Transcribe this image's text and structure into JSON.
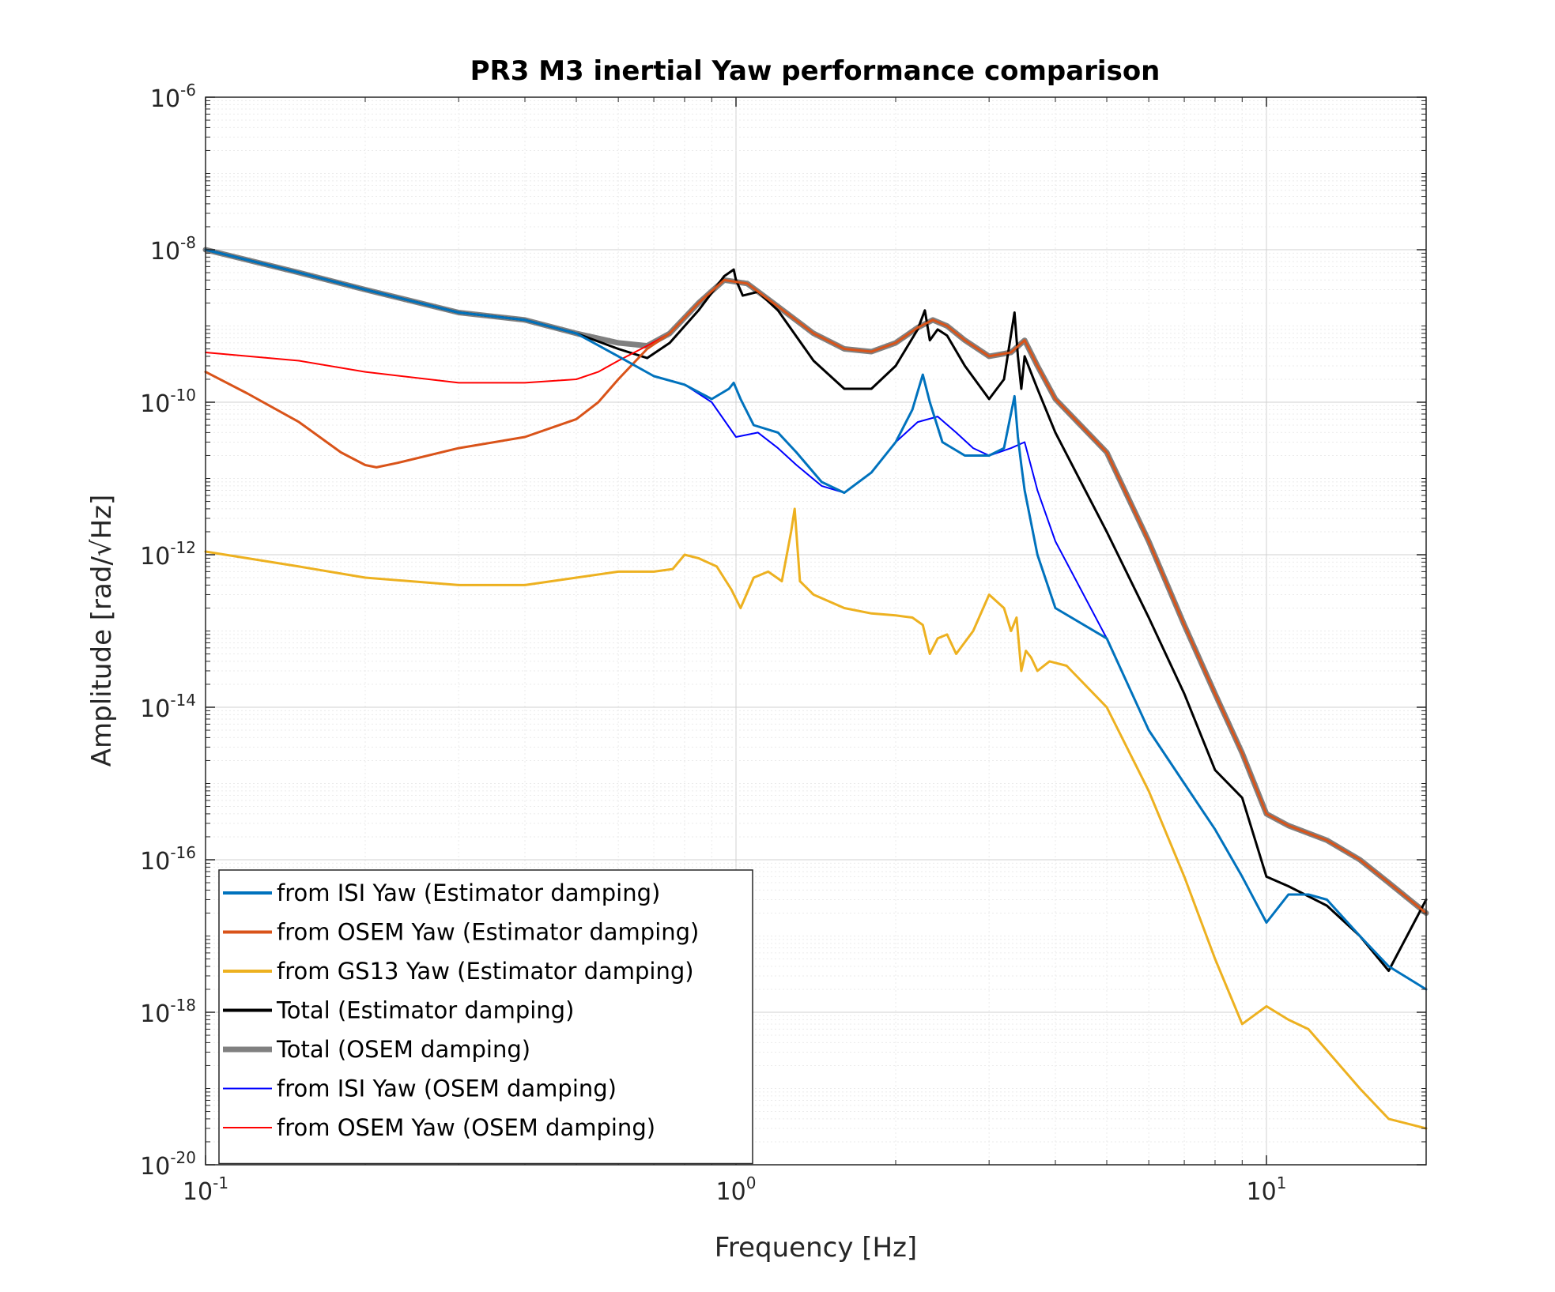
{
  "chart_data": {
    "type": "line",
    "title": "PR3 M3 inertial Yaw performance comparison",
    "xlabel": "Frequency [Hz]",
    "ylabel": "Amplitude [rad/√Hz]",
    "xscale": "log",
    "yscale": "log",
    "xlim": [
      0.1,
      20
    ],
    "ylim": [
      1e-20,
      1e-06
    ],
    "grid": true,
    "minor_grid": true,
    "legend_location": "bottom-left",
    "x_ticks": [
      {
        "value": 0.1,
        "base": "10",
        "exp": "-1"
      },
      {
        "value": 1,
        "base": "10",
        "exp": "0"
      },
      {
        "value": 10,
        "base": "10",
        "exp": "1"
      }
    ],
    "y_ticks": [
      {
        "value": 1e-06,
        "base": "10",
        "exp": "-6"
      },
      {
        "value": 1e-08,
        "base": "10",
        "exp": "-8"
      },
      {
        "value": 1e-10,
        "base": "10",
        "exp": "-10"
      },
      {
        "value": 1e-12,
        "base": "10",
        "exp": "-12"
      },
      {
        "value": 1e-14,
        "base": "10",
        "exp": "-14"
      },
      {
        "value": 1e-16,
        "base": "10",
        "exp": "-16"
      },
      {
        "value": 1e-18,
        "base": "10",
        "exp": "-18"
      },
      {
        "value": 1e-20,
        "base": "10",
        "exp": "-20"
      }
    ],
    "series": [
      {
        "name": "Total (OSEM damping)",
        "color": "#808080",
        "width": 7,
        "x": [
          0.1,
          0.15,
          0.2,
          0.3,
          0.4,
          0.5,
          0.6,
          0.68,
          0.75,
          0.85,
          0.95,
          1.05,
          1.2,
          1.4,
          1.6,
          1.8,
          2.0,
          2.2,
          2.35,
          2.5,
          2.7,
          3.0,
          3.3,
          3.5,
          3.7,
          4.0,
          5.0,
          6.0,
          7.0,
          8.0,
          9.0,
          10.0,
          11.0,
          13.0,
          15.0,
          17.0,
          20.0
        ],
        "y": [
          1e-08,
          5e-09,
          3e-09,
          1.5e-09,
          1.2e-09,
          8e-10,
          6e-10,
          5.5e-10,
          8e-10,
          2e-09,
          4e-09,
          3.6e-09,
          1.8e-09,
          8e-10,
          5e-10,
          4.6e-10,
          6e-10,
          9.5e-10,
          1.2e-09,
          1e-09,
          6.5e-10,
          4e-10,
          4.5e-10,
          6.5e-10,
          3e-10,
          1.1e-10,
          2.2e-11,
          1.5e-12,
          1.2e-13,
          1.5e-14,
          2.5e-15,
          4e-16,
          2.8e-16,
          1.8e-16,
          1e-16,
          5e-17,
          2e-17
        ]
      },
      {
        "name": "Total (Estimator damping)",
        "color": "#000000",
        "width": 3,
        "x": [
          0.1,
          0.15,
          0.2,
          0.3,
          0.4,
          0.5,
          0.6,
          0.68,
          0.75,
          0.85,
          0.95,
          0.99,
          1.0,
          1.03,
          1.1,
          1.2,
          1.4,
          1.6,
          1.8,
          2.0,
          2.2,
          2.27,
          2.32,
          2.4,
          2.5,
          2.7,
          3.0,
          3.2,
          3.35,
          3.4,
          3.45,
          3.5,
          3.7,
          4.0,
          5.0,
          6.0,
          7.0,
          8.0,
          9.0,
          10.0,
          11.0,
          13.0,
          15.0,
          17.0,
          20.0
        ],
        "y": [
          1e-08,
          5e-09,
          3e-09,
          1.5e-09,
          1.2e-09,
          8e-10,
          5e-10,
          3.8e-10,
          6e-10,
          1.6e-09,
          4.5e-09,
          5.5e-09,
          4e-09,
          2.5e-09,
          2.8e-09,
          1.6e-09,
          3.5e-10,
          1.5e-10,
          1.5e-10,
          3e-10,
          9e-10,
          1.6e-09,
          6.5e-10,
          9e-10,
          7.5e-10,
          3e-10,
          1.1e-10,
          2e-10,
          1.5e-09,
          4e-10,
          1.5e-10,
          4e-10,
          1.5e-10,
          4e-11,
          2e-12,
          1.5e-13,
          1.5e-14,
          1.5e-15,
          6.5e-16,
          6e-17,
          4.5e-17,
          2.5e-17,
          1e-17,
          3.5e-18,
          3e-17
        ]
      },
      {
        "name": "from OSEM Yaw (OSEM damping)",
        "color": "#ff0000",
        "width": 2,
        "x": [
          0.1,
          0.15,
          0.2,
          0.3,
          0.4,
          0.5,
          0.55,
          0.6,
          0.68,
          0.75,
          0.85,
          0.95,
          1.05,
          1.2,
          1.4,
          1.6,
          1.8,
          2.0,
          2.2,
          2.35,
          2.5,
          2.7,
          3.0,
          3.3,
          3.5,
          3.7,
          4.0,
          5.0,
          6.0,
          7.0,
          8.0,
          9.0,
          10.0,
          11.0,
          13.0,
          15.0,
          17.0,
          20.0
        ],
        "y": [
          4.5e-10,
          3.5e-10,
          2.5e-10,
          1.8e-10,
          1.8e-10,
          2e-10,
          2.5e-10,
          3.5e-10,
          5.5e-10,
          8e-10,
          2e-09,
          4e-09,
          3.6e-09,
          1.8e-09,
          8e-10,
          5e-10,
          4.6e-10,
          6e-10,
          9.5e-10,
          1.2e-09,
          1e-09,
          6.5e-10,
          4e-10,
          4.5e-10,
          6.5e-10,
          3e-10,
          1.1e-10,
          2.2e-11,
          1.5e-12,
          1.2e-13,
          1.5e-14,
          2.5e-15,
          4e-16,
          2.8e-16,
          1.8e-16,
          1e-16,
          5e-17,
          2e-17
        ]
      },
      {
        "name": "from OSEM Yaw (Estimator damping)",
        "color": "#d95319",
        "width": 3,
        "x": [
          0.1,
          0.12,
          0.15,
          0.18,
          0.2,
          0.21,
          0.23,
          0.3,
          0.4,
          0.5,
          0.55,
          0.6,
          0.68,
          0.75,
          0.85,
          0.95,
          1.05,
          1.2,
          1.4,
          1.6,
          1.8,
          2.0,
          2.2,
          2.35,
          2.5,
          2.7,
          3.0,
          3.3,
          3.5,
          3.7,
          4.0,
          5.0,
          6.0,
          7.0,
          8.0,
          9.0,
          10.0,
          11.0,
          13.0,
          15.0,
          17.0,
          20.0
        ],
        "y": [
          2.5e-10,
          1.3e-10,
          5.5e-11,
          2.2e-11,
          1.5e-11,
          1.4e-11,
          1.6e-11,
          2.5e-11,
          3.5e-11,
          6e-11,
          1e-10,
          2e-10,
          5e-10,
          8e-10,
          2e-09,
          4e-09,
          3.6e-09,
          1.8e-09,
          8e-10,
          5e-10,
          4.6e-10,
          6e-10,
          9.5e-10,
          1.2e-09,
          1e-09,
          6.5e-10,
          4e-10,
          4.5e-10,
          6.5e-10,
          3e-10,
          1.1e-10,
          2.2e-11,
          1.5e-12,
          1.2e-13,
          1.5e-14,
          2.5e-15,
          4e-16,
          2.8e-16,
          1.8e-16,
          1e-16,
          5e-17,
          2e-17
        ]
      },
      {
        "name": "from ISI Yaw (OSEM damping)",
        "color": "#0000ff",
        "width": 2,
        "x": [
          0.1,
          0.15,
          0.2,
          0.3,
          0.4,
          0.5,
          0.6,
          0.7,
          0.8,
          0.9,
          1.0,
          1.1,
          1.2,
          1.3,
          1.45,
          1.6,
          1.8,
          2.0,
          2.2,
          2.4,
          2.6,
          2.8,
          3.0,
          3.3,
          3.5,
          3.7,
          4.0,
          5.0,
          6.0,
          7.0,
          8.0,
          9.0,
          10.0,
          11.0,
          12.0,
          13.0,
          15.0,
          17.0,
          20.0
        ],
        "y": [
          1e-08,
          5e-09,
          3e-09,
          1.5e-09,
          1.2e-09,
          8e-10,
          4e-10,
          2.2e-10,
          1.7e-10,
          1e-10,
          3.5e-11,
          4e-11,
          2.5e-11,
          1.5e-11,
          8e-12,
          6.5e-12,
          1.2e-11,
          3e-11,
          5.5e-11,
          6.5e-11,
          4e-11,
          2.5e-11,
          2e-11,
          2.5e-11,
          3e-11,
          7e-12,
          1.5e-12,
          8e-14,
          5e-15,
          1e-15,
          2.5e-16,
          6e-17,
          1.5e-17,
          3.5e-17,
          3.5e-17,
          3e-17,
          1e-17,
          4e-18,
          2e-18
        ]
      },
      {
        "name": "from ISI Yaw (Estimator damping)",
        "color": "#0072bd",
        "width": 3,
        "x": [
          0.1,
          0.15,
          0.2,
          0.3,
          0.4,
          0.5,
          0.6,
          0.7,
          0.8,
          0.9,
          0.97,
          0.99,
          1.02,
          1.08,
          1.2,
          1.3,
          1.45,
          1.6,
          1.8,
          2.0,
          2.15,
          2.25,
          2.32,
          2.45,
          2.7,
          3.0,
          3.2,
          3.35,
          3.4,
          3.45,
          3.5,
          3.7,
          4.0,
          5.0,
          6.0,
          7.0,
          8.0,
          9.0,
          10.0,
          11.0,
          12.0,
          13.0,
          15.0,
          17.0,
          20.0
        ],
        "y": [
          1e-08,
          5e-09,
          3e-09,
          1.5e-09,
          1.2e-09,
          8e-10,
          4e-10,
          2.2e-10,
          1.7e-10,
          1.1e-10,
          1.5e-10,
          1.8e-10,
          1.1e-10,
          5e-11,
          4e-11,
          2.2e-11,
          9e-12,
          6.5e-12,
          1.2e-11,
          3e-11,
          8e-11,
          2.3e-10,
          1e-10,
          3e-11,
          2e-11,
          2e-11,
          2.5e-11,
          1.2e-10,
          3.5e-11,
          1.5e-11,
          7e-12,
          1e-12,
          2e-13,
          8e-14,
          5e-15,
          1e-15,
          2.5e-16,
          6e-17,
          1.5e-17,
          3.5e-17,
          3.5e-17,
          3e-17,
          1e-17,
          4e-18,
          2e-18
        ]
      },
      {
        "name": "from GS13 Yaw (Estimator damping)",
        "color": "#edb120",
        "width": 3,
        "x": [
          0.1,
          0.15,
          0.2,
          0.3,
          0.4,
          0.5,
          0.6,
          0.7,
          0.76,
          0.8,
          0.85,
          0.92,
          0.98,
          1.02,
          1.08,
          1.15,
          1.22,
          1.27,
          1.29,
          1.32,
          1.4,
          1.6,
          1.8,
          2.0,
          2.15,
          2.25,
          2.32,
          2.4,
          2.5,
          2.6,
          2.8,
          3.0,
          3.2,
          3.3,
          3.38,
          3.45,
          3.52,
          3.6,
          3.7,
          3.9,
          4.2,
          5.0,
          6.0,
          7.0,
          8.0,
          9.0,
          10.0,
          11.0,
          12.0,
          15.0,
          17.0,
          20.0
        ],
        "y": [
          1.1e-12,
          7e-13,
          5e-13,
          4e-13,
          4e-13,
          5e-13,
          6e-13,
          6e-13,
          6.5e-13,
          1e-12,
          9e-13,
          7e-13,
          3.5e-13,
          2e-13,
          5e-13,
          6e-13,
          4.5e-13,
          2e-12,
          4e-12,
          4.5e-13,
          3e-13,
          2e-13,
          1.7e-13,
          1.6e-13,
          1.5e-13,
          1.2e-13,
          5e-14,
          8e-14,
          9e-14,
          5e-14,
          1e-13,
          3e-13,
          2e-13,
          1e-13,
          1.5e-13,
          3e-14,
          5.5e-14,
          4.5e-14,
          3e-14,
          4e-14,
          3.5e-14,
          1e-14,
          8e-16,
          6e-17,
          5e-18,
          7e-19,
          1.2e-18,
          8e-19,
          6e-19,
          1e-19,
          4e-20,
          3e-20
        ]
      }
    ],
    "legend": [
      {
        "name": "from ISI Yaw (Estimator damping)",
        "color": "#0072bd",
        "width": 4
      },
      {
        "name": "from OSEM Yaw (Estimator damping)",
        "color": "#d95319",
        "width": 4
      },
      {
        "name": "from GS13 Yaw (Estimator damping)",
        "color": "#edb120",
        "width": 4
      },
      {
        "name": "Total (Estimator damping)",
        "color": "#000000",
        "width": 4
      },
      {
        "name": "Total (OSEM damping)",
        "color": "#808080",
        "width": 7
      },
      {
        "name": "from ISI Yaw (OSEM damping)",
        "color": "#0000ff",
        "width": 2
      },
      {
        "name": "from OSEM Yaw (OSEM damping)",
        "color": "#ff0000",
        "width": 2
      }
    ]
  }
}
